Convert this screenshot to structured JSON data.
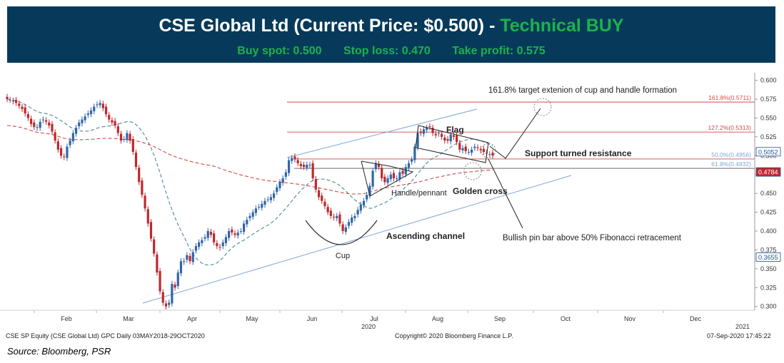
{
  "banner": {
    "title_main": "CSE Global Ltd (Current Price: $0.500) - ",
    "title_signal": "Technical BUY",
    "buy_spot": "Buy spot: 0.500",
    "stop_loss": "Stop loss: 0.470",
    "take_profit": "Take profit: 0.575"
  },
  "footer": {
    "left": "CSE SP Equity (CSE Global Ltd) GPC  Daily 03MAY2018-29OCT2020",
    "center": "Copyright© 2020 Bloomberg Finance L.P.",
    "right": "07-Sep-2020 17:45:22",
    "source": "Source: Bloomberg, PSR"
  },
  "colors": {
    "banner_bg": "#073a5a",
    "buy_green": "#1bb34a",
    "candle_up": "#2f66a8",
    "candle_down": "#c1272d",
    "ma_50": "#4a8a9a",
    "ma_200": "#d14a4a",
    "fib": "#d04a4a",
    "channel": "#7fa6d6"
  },
  "chart_data": {
    "type": "candlestick",
    "ylim": [
      0.295,
      0.61
    ],
    "yticks": [
      "0.600",
      "0.575",
      "0.550",
      "0.525",
      "0.500",
      "0.475",
      "0.450",
      "0.425",
      "0.400",
      "0.375",
      "0.350",
      "0.325",
      "0.300"
    ],
    "xticks": [
      "Feb",
      "Mar",
      "Apr",
      "May",
      "Jun",
      "Jul",
      "Aug",
      "Sep",
      "Oct",
      "Nov",
      "Dec"
    ],
    "year_labels": [
      "2020",
      "2021"
    ],
    "price_tags": [
      {
        "label": "0.5052",
        "value": 0.5052,
        "style": "blue"
      },
      {
        "label": "0.4784",
        "value": 0.4784,
        "style": "red"
      },
      {
        "label": "0.3655",
        "value": 0.3655,
        "style": "blue"
      }
    ],
    "candles_close": [
      0.575,
      0.574,
      0.572,
      0.57,
      0.566,
      0.562,
      0.556,
      0.55,
      0.542,
      0.538,
      0.538,
      0.545,
      0.548,
      0.545,
      0.54,
      0.532,
      0.52,
      0.508,
      0.5,
      0.498,
      0.512,
      0.52,
      0.53,
      0.537,
      0.544,
      0.548,
      0.552,
      0.556,
      0.56,
      0.565,
      0.568,
      0.57,
      0.563,
      0.555,
      0.548,
      0.544,
      0.54,
      0.53,
      0.52,
      0.522,
      0.53,
      0.52,
      0.505,
      0.485,
      0.465,
      0.448,
      0.43,
      0.41,
      0.39,
      0.37,
      0.345,
      0.32,
      0.305,
      0.3,
      0.305,
      0.33,
      0.325,
      0.345,
      0.36,
      0.36,
      0.368,
      0.36,
      0.372,
      0.38,
      0.385,
      0.388,
      0.392,
      0.4,
      0.395,
      0.385,
      0.38,
      0.378,
      0.385,
      0.392,
      0.4,
      0.398,
      0.395,
      0.398,
      0.4,
      0.41,
      0.415,
      0.42,
      0.425,
      0.43,
      0.432,
      0.436,
      0.44,
      0.442,
      0.445,
      0.45,
      0.458,
      0.465,
      0.47,
      0.478,
      0.494,
      0.497,
      0.495,
      0.49,
      0.486,
      0.485,
      0.488,
      0.488,
      0.47,
      0.455,
      0.445,
      0.44,
      0.433,
      0.425,
      0.42,
      0.418,
      0.42,
      0.41,
      0.4,
      0.405,
      0.412,
      0.418,
      0.42,
      0.428,
      0.435,
      0.44,
      0.448,
      0.46,
      0.48,
      0.49,
      0.485,
      0.47,
      0.465,
      0.47,
      0.475,
      0.47,
      0.47,
      0.478,
      0.476,
      0.485,
      0.49,
      0.495,
      0.512,
      0.53,
      0.53,
      0.535,
      0.537,
      0.538,
      0.53,
      0.527,
      0.53,
      0.525,
      0.52,
      0.52,
      0.528,
      0.525,
      0.518,
      0.508,
      0.51,
      0.506,
      0.505,
      0.508,
      0.512,
      0.51,
      0.507,
      0.505,
      0.503,
      0.502,
      0.5
    ],
    "fibonacci_levels": [
      {
        "label": "161.8%(0.5711)",
        "value": 0.5711
      },
      {
        "label": "127.2%(0.5313)",
        "value": 0.5313
      },
      {
        "label": "50.0%(0.4956)",
        "value": 0.4956
      },
      {
        "label": "61.8%(0.4832)",
        "value": 0.4832
      }
    ],
    "annotations": {
      "target": "161.8% target extenion of cup and handle formation",
      "flag": "Flag",
      "support_resistance": "Support turned resistance",
      "handle": "Handle/pennant",
      "golden_cross": "Golden cross",
      "channel": "Ascending channel",
      "cup": "Cup",
      "pin_bar": "Bullish pin bar above 50% Fibonacci retracement"
    }
  }
}
